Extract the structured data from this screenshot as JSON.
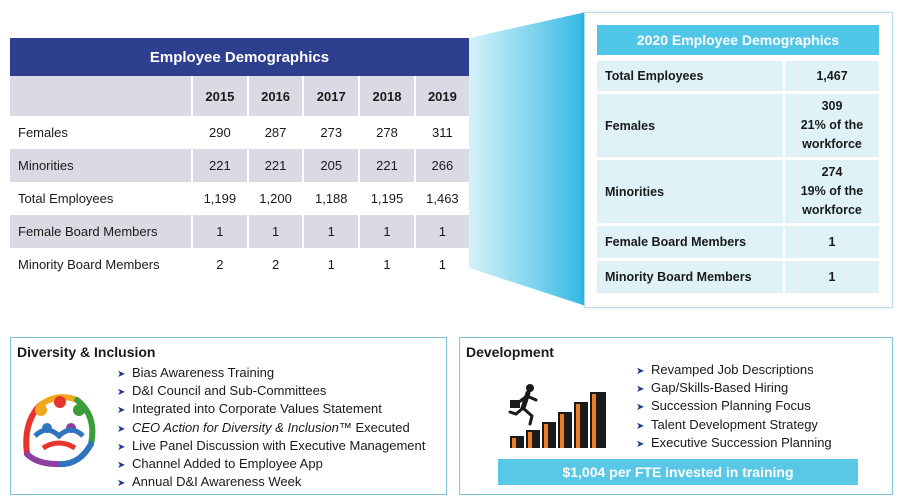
{
  "left_table": {
    "title": "Employee Demographics",
    "years": [
      "2015",
      "2016",
      "2017",
      "2018",
      "2019"
    ],
    "rows": [
      {
        "label": "Females",
        "values": [
          "290",
          "287",
          "273",
          "278",
          "311"
        ]
      },
      {
        "label": "Minorities",
        "values": [
          "221",
          "221",
          "205",
          "221",
          "266"
        ]
      },
      {
        "label": "Total Employees",
        "values": [
          "1,199",
          "1,200",
          "1,188",
          "1,195",
          "1,463"
        ]
      },
      {
        "label": "Female Board Members",
        "values": [
          "1",
          "1",
          "1",
          "1",
          "1"
        ]
      },
      {
        "label": "Minority Board Members",
        "values": [
          "2",
          "2",
          "1",
          "1",
          "1"
        ]
      }
    ]
  },
  "right_card": {
    "title": "2020 Employee Demographics",
    "rows": [
      {
        "label": "Total Employees",
        "value": "1,467"
      },
      {
        "label": "Females",
        "value": "309",
        "note1": "21% of the",
        "note2": "workforce"
      },
      {
        "label": "Minorities",
        "value": "274",
        "note1": "19% of the",
        "note2": "workforce"
      },
      {
        "label": "Female Board Members",
        "value": "1"
      },
      {
        "label": "Minority Board Members",
        "value": "1"
      }
    ]
  },
  "diversity": {
    "title": "Diversity & Inclusion",
    "items": [
      "Bias Awareness Training",
      "D&I Council and Sub-Committees",
      "Integrated into Corporate Values Statement",
      "CEO Action for Diversity & Inclusion™",
      "Executed",
      "Live Panel Discussion with Executive Management",
      "Channel Added to Employee App",
      "Annual D&I Awareness Week"
    ]
  },
  "development": {
    "title": "Development",
    "items": [
      "Revamped Job Descriptions",
      "Gap/Skills-Based Hiring",
      "Succession Planning Focus",
      "Talent Development Strategy",
      "Executive Succession Planning"
    ],
    "banner": "$1,004 per FTE invested in training"
  },
  "colors": {
    "navy": "#2f3f8f",
    "cyan": "#4fc6e8",
    "bullet_arrow": "#1f3b8c",
    "stairs_orange": "#e97e22"
  },
  "icons": {
    "bullet": "arrow-bullet-icon",
    "diversity_logo": "people-circle-icon",
    "development_art": "running-stairs-icon"
  }
}
